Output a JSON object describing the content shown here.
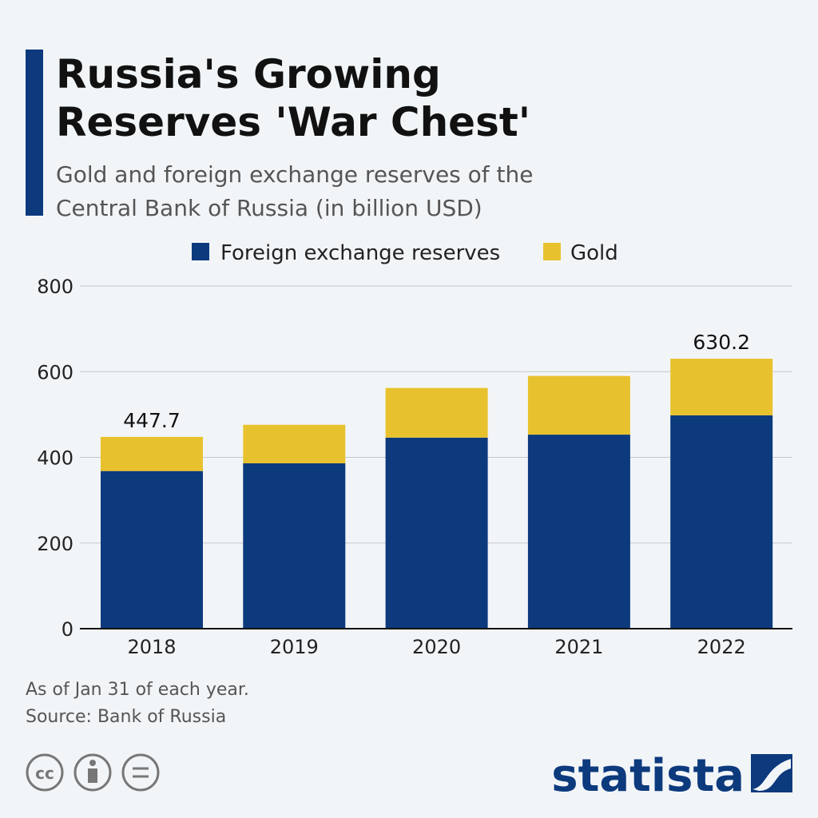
{
  "chart_data": {
    "type": "stacked-bar",
    "title": "Russia's Growing Reserves 'War Chest'",
    "subtitle": "Gold and foreign exchange reserves of the Central Bank of Russia (in billion USD)",
    "categories": [
      "2018",
      "2019",
      "2020",
      "2021",
      "2022"
    ],
    "series": [
      {
        "name": "Foreign exchange reserves",
        "color": "#0c3a7d",
        "values": [
          368,
          386,
          446,
          453,
          498
        ]
      },
      {
        "name": "Gold",
        "color": "#e8c22e",
        "values": [
          79.7,
          90,
          116,
          137,
          132.2
        ]
      }
    ],
    "totals": [
      447.7,
      null,
      null,
      null,
      630.2
    ],
    "ylim": [
      0,
      800
    ],
    "yticks": [
      0,
      200,
      400,
      600,
      800
    ],
    "grid": true,
    "note": "As of Jan 31 of each year.",
    "source": "Source: Bank of Russia",
    "brand": "statista"
  }
}
